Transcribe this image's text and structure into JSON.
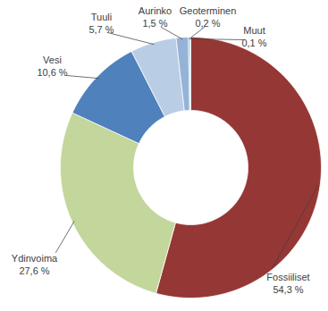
{
  "chart_data": {
    "type": "donut",
    "categories": [
      "Fossiiliset",
      "Ydinvoima",
      "Vesi",
      "Tuuli",
      "Aurinko",
      "Geoterminen",
      "Muut"
    ],
    "values": [
      54.3,
      27.6,
      10.6,
      5.7,
      1.5,
      0.2,
      0.1
    ],
    "value_labels": [
      "54,3 %",
      "27,6 %",
      "10,6 %",
      "5,7 %",
      "1,5 %",
      "0,2 %",
      "0,1 %"
    ],
    "colors": [
      "#953735",
      "#c3d69b",
      "#4f81bd",
      "#b9cde5",
      "#95b3d7",
      "#8eb4e3",
      "#4f81bd"
    ],
    "data_labels": true
  }
}
